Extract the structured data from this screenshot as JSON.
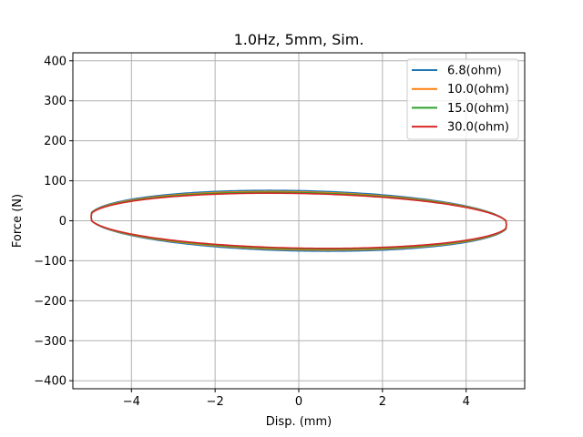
{
  "chart_data": {
    "type": "line",
    "title": "1.0Hz, 5mm, Sim.",
    "xlabel": "Disp. (mm)",
    "ylabel": "Force (N)",
    "xlim": [
      -5.4,
      5.4
    ],
    "ylim": [
      -420,
      420
    ],
    "xticks": [
      -4,
      -2,
      0,
      2,
      4
    ],
    "xtick_labels": [
      "−4",
      "−2",
      "0",
      "2",
      "4"
    ],
    "yticks": [
      -400,
      -300,
      -200,
      -100,
      0,
      100,
      200,
      300,
      400
    ],
    "ytick_labels": [
      "−400",
      "−300",
      "−200",
      "−100",
      "0",
      "100",
      "200",
      "300",
      "400"
    ],
    "grid": true,
    "legend_position": "top-right",
    "series": [
      {
        "name": "6.8(ohm)",
        "color": "#1f77b4",
        "amplitude_mm": 5.0,
        "peak_force_N": 76,
        "phase_offset_deg": 8
      },
      {
        "name": "10.0(ohm)",
        "color": "#ff7f0e",
        "amplitude_mm": 5.0,
        "peak_force_N": 73,
        "phase_offset_deg": 8
      },
      {
        "name": "15.0(ohm)",
        "color": "#2ca02c",
        "amplitude_mm": 5.0,
        "peak_force_N": 71,
        "phase_offset_deg": 8
      },
      {
        "name": "30.0(ohm)",
        "color": "#d62728",
        "amplitude_mm": 5.0,
        "peak_force_N": 69,
        "phase_offset_deg": 8
      }
    ]
  }
}
